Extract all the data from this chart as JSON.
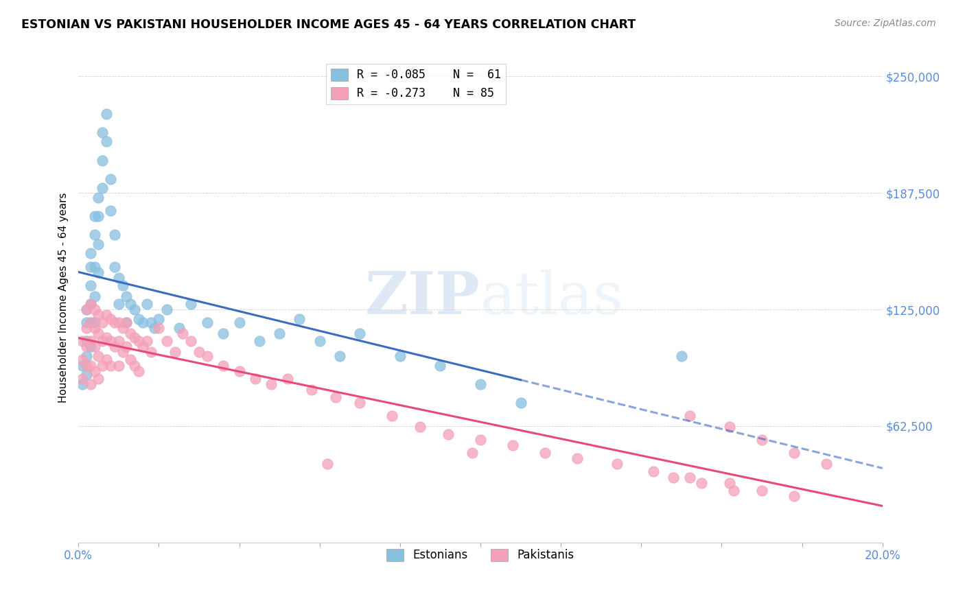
{
  "title": "ESTONIAN VS PAKISTANI HOUSEHOLDER INCOME AGES 45 - 64 YEARS CORRELATION CHART",
  "source": "Source: ZipAtlas.com",
  "ylabel": "Householder Income Ages 45 - 64 years",
  "xlim": [
    0.0,
    0.2
  ],
  "ylim": [
    0,
    262500
  ],
  "xticks": [
    0.0,
    0.02,
    0.04,
    0.06,
    0.08,
    0.1,
    0.12,
    0.14,
    0.16,
    0.18,
    0.2
  ],
  "xticklabels": [
    "0.0%",
    "",
    "",
    "",
    "",
    "",
    "",
    "",
    "",
    "",
    "20.0%"
  ],
  "ytick_positions": [
    0,
    62500,
    125000,
    187500,
    250000
  ],
  "ytick_labels": [
    "",
    "$62,500",
    "$125,000",
    "$187,500",
    "$250,000"
  ],
  "legend_estonian": "R = -0.085    N =  61",
  "legend_pakistani": "R = -0.273    N = 85",
  "color_estonian": "#88c0e0",
  "color_pakistani": "#f4a0b8",
  "color_estonian_line": "#3a6bbf",
  "color_pakistani_line": "#e8487a",
  "color_axis_labels": "#5b8dd9",
  "estonian_x": [
    0.001,
    0.001,
    0.002,
    0.002,
    0.002,
    0.002,
    0.002,
    0.003,
    0.003,
    0.003,
    0.003,
    0.003,
    0.003,
    0.004,
    0.004,
    0.004,
    0.004,
    0.004,
    0.005,
    0.005,
    0.005,
    0.005,
    0.006,
    0.006,
    0.006,
    0.007,
    0.007,
    0.008,
    0.008,
    0.009,
    0.009,
    0.01,
    0.01,
    0.011,
    0.012,
    0.012,
    0.013,
    0.014,
    0.015,
    0.016,
    0.017,
    0.018,
    0.019,
    0.02,
    0.022,
    0.025,
    0.028,
    0.032,
    0.036,
    0.04,
    0.045,
    0.05,
    0.055,
    0.06,
    0.065,
    0.07,
    0.08,
    0.09,
    0.1,
    0.11,
    0.15
  ],
  "estonian_y": [
    95000,
    85000,
    125000,
    118000,
    108000,
    100000,
    90000,
    155000,
    148000,
    138000,
    128000,
    118000,
    105000,
    175000,
    165000,
    148000,
    132000,
    118000,
    185000,
    175000,
    160000,
    145000,
    220000,
    205000,
    190000,
    230000,
    215000,
    195000,
    178000,
    165000,
    148000,
    142000,
    128000,
    138000,
    132000,
    118000,
    128000,
    125000,
    120000,
    118000,
    128000,
    118000,
    115000,
    120000,
    125000,
    115000,
    128000,
    118000,
    112000,
    118000,
    108000,
    112000,
    120000,
    108000,
    100000,
    112000,
    100000,
    95000,
    85000,
    75000,
    100000
  ],
  "pakistani_x": [
    0.001,
    0.001,
    0.001,
    0.002,
    0.002,
    0.002,
    0.002,
    0.003,
    0.003,
    0.003,
    0.003,
    0.003,
    0.004,
    0.004,
    0.004,
    0.004,
    0.005,
    0.005,
    0.005,
    0.005,
    0.006,
    0.006,
    0.006,
    0.007,
    0.007,
    0.007,
    0.008,
    0.008,
    0.008,
    0.009,
    0.009,
    0.01,
    0.01,
    0.01,
    0.011,
    0.011,
    0.012,
    0.012,
    0.013,
    0.013,
    0.014,
    0.014,
    0.015,
    0.015,
    0.016,
    0.017,
    0.018,
    0.02,
    0.022,
    0.024,
    0.026,
    0.028,
    0.03,
    0.032,
    0.036,
    0.04,
    0.044,
    0.048,
    0.052,
    0.058,
    0.064,
    0.07,
    0.078,
    0.085,
    0.092,
    0.1,
    0.108,
    0.116,
    0.124,
    0.134,
    0.143,
    0.152,
    0.162,
    0.17,
    0.178,
    0.152,
    0.162,
    0.17,
    0.178,
    0.186,
    0.062,
    0.098,
    0.148,
    0.155,
    0.163
  ],
  "pakistani_y": [
    108000,
    98000,
    88000,
    125000,
    115000,
    105000,
    95000,
    128000,
    118000,
    108000,
    95000,
    85000,
    125000,
    115000,
    105000,
    92000,
    122000,
    112000,
    100000,
    88000,
    118000,
    108000,
    95000,
    122000,
    110000,
    98000,
    120000,
    108000,
    95000,
    118000,
    105000,
    118000,
    108000,
    95000,
    115000,
    102000,
    118000,
    105000,
    112000,
    98000,
    110000,
    95000,
    108000,
    92000,
    105000,
    108000,
    102000,
    115000,
    108000,
    102000,
    112000,
    108000,
    102000,
    100000,
    95000,
    92000,
    88000,
    85000,
    88000,
    82000,
    78000,
    75000,
    68000,
    62000,
    58000,
    55000,
    52000,
    48000,
    45000,
    42000,
    38000,
    35000,
    32000,
    28000,
    25000,
    68000,
    62000,
    55000,
    48000,
    42000,
    42000,
    48000,
    35000,
    32000,
    28000
  ]
}
